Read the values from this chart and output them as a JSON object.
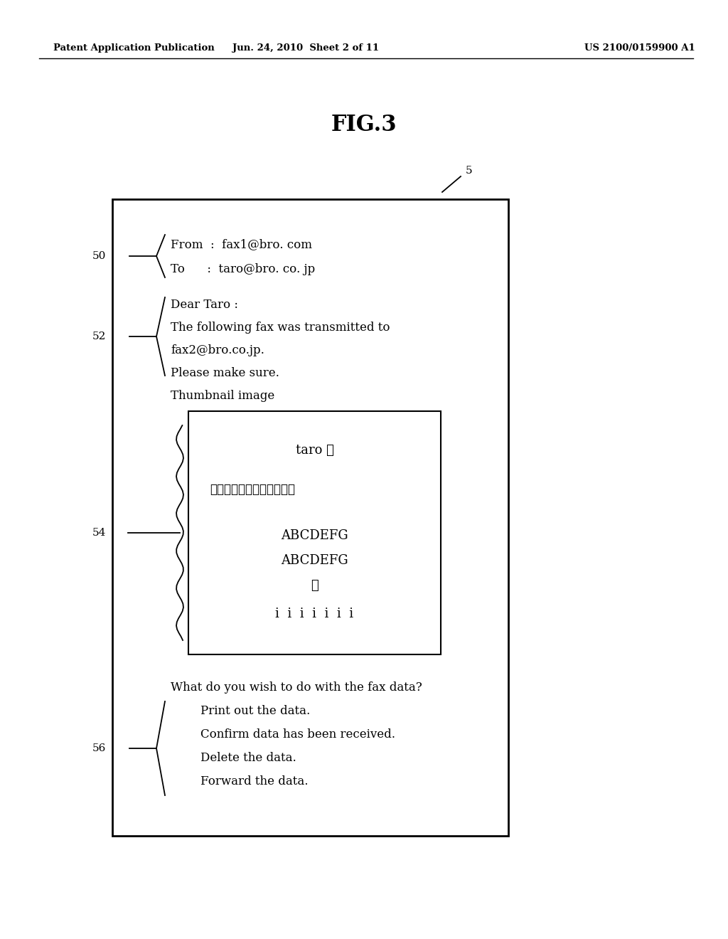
{
  "bg_color": "#ffffff",
  "header_left": "Patent Application Publication",
  "header_mid": "Jun. 24, 2010  Sheet 2 of 11",
  "header_right": "US 2100/0159900 A1",
  "fig_title": "FIG.3",
  "label_5": "5",
  "label_50": "50",
  "label_52": "52",
  "label_54": "54",
  "label_56": "56",
  "from_line": "From  :  fax1@bro. com",
  "to_line": "To      :  taro@bro. co. jp",
  "dear_line": "Dear Taro :",
  "body_line1": "The following fax was transmitted to",
  "body_line2": "fax2@bro.co.jp.",
  "body_line3": "Please make sure.",
  "thumbnail_label": "Thumbnail image",
  "taro_sama": "taro 様",
  "japanese_line": "設計変更は。。。。。。。",
  "abc_line1": "ABCDEFG",
  "abc_line2": "ABCDEFG",
  "no_line": "の",
  "i_line": "i  i  i  i  i  i  i",
  "question_line": "What do you wish to do with the fax data?",
  "option1": "        Print out the data.",
  "option2": "        Confirm data has been received.",
  "option3": "        Delete the data.",
  "option4": "        Forward the data.",
  "font_size_header": 9.5,
  "font_size_title": 22,
  "font_size_body": 12,
  "font_size_label": 11
}
